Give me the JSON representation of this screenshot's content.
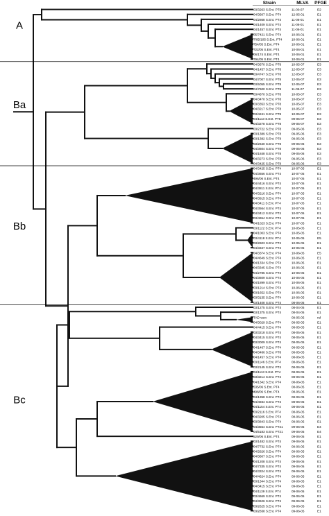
{
  "header": {
    "strain": "Strain",
    "mlva": "MLVA",
    "pfge": "PFGE"
  },
  "clusters": [
    "A",
    "Ba",
    "Bb",
    "Bc"
  ],
  "rows": [
    {
      "strain": "03/3263 S.Ent. PT8",
      "mlva": "11-00-07",
      "pfge": "E2"
    },
    {
      "strain": "04/3607 S.Ent. PT4",
      "mlva": "12-05-01",
      "pfge": "E1"
    },
    {
      "strain": "04/2868 S.Ent. PT4",
      "mlva": "11-06-01",
      "pfge": "E1"
    },
    {
      "strain": "04/1409 S.Ent. PT4",
      "mlva": "11-06-01",
      "pfge": "E1"
    },
    {
      "strain": "04/1457 S.Ent. PT4",
      "mlva": "11-06-01",
      "pfge": "E1"
    },
    {
      "strain": "05/7421 S.Ent. PT4",
      "mlva": "10-06-01",
      "pfge": "E1"
    },
    {
      "strain": "7/05/105 S.Ent. PT4",
      "mlva": "10-06-01",
      "pfge": "E1"
    },
    {
      "strain": "754/05 S.Ent. PT4",
      "mlva": "10-06-01",
      "pfge": "E1"
    },
    {
      "strain": "722/05 S.Ent. PT4",
      "mlva": "10-06-01",
      "pfge": "E1"
    },
    {
      "strain": "06/174 S.Ent. PT4",
      "mlva": "10-06-01",
      "pfge": "E1"
    },
    {
      "strain": "794/05 S.Ent. PT4",
      "mlva": "10-06-01",
      "pfge": "E1"
    },
    {
      "strain": "04/3670 S.Ent. PT8",
      "mlva": "10-05-07",
      "pfge": "E3"
    },
    {
      "strain": "04/1457 S.Ent. PT8",
      "mlva": "12-05-07",
      "pfge": "E3"
    },
    {
      "strain": "03/4747 S.Ent. PT8",
      "mlva": "12-05-07",
      "pfge": "E3"
    },
    {
      "strain": "04/7007 S.Ent. PT8",
      "mlva": "12-05-07",
      "pfge": "E3"
    },
    {
      "strain": "03/5055 S.Ent. PT8",
      "mlva": "12-05-07",
      "pfge": "E3"
    },
    {
      "strain": "04/7600 S.Ent. PT8",
      "mlva": "11-05-07",
      "pfge": "E3"
    },
    {
      "strain": "03/4670 S.Ent. PT8",
      "mlva": "10-05-07",
      "pfge": "E3"
    },
    {
      "strain": "04/3470 S.Ent. PT8",
      "mlva": "10-05-07",
      "pfge": "E3"
    },
    {
      "strain": "03/3353 S.Ent. PT8",
      "mlva": "10-05-07",
      "pfge": "E3"
    },
    {
      "strain": "04/3217 S.Ent. PT8",
      "mlva": "10-05-07",
      "pfge": "E3"
    },
    {
      "strain": "03/4241 S.Ent. PT8",
      "mlva": "10-05-07",
      "pfge": "E3"
    },
    {
      "strain": "04/1113 S.Ent. PT8",
      "mlva": "09-05-07",
      "pfge": "E3"
    },
    {
      "strain": "04/3278 S.Ent. PT8",
      "mlva": "09-05-07",
      "pfge": "E3"
    },
    {
      "strain": "03/2722 S.Ent. PT8",
      "mlva": "09-05-06",
      "pfge": "E3"
    },
    {
      "strain": "03/1389 S.Ent. PT8",
      "mlva": "09-05-06",
      "pfge": "E3"
    },
    {
      "strain": "03/1382 S.Ent. PT8",
      "mlva": "09-05-06",
      "pfge": "E3"
    },
    {
      "strain": "03/2640 S.Ent. PT8",
      "mlva": "09-05-06",
      "pfge": "E3"
    },
    {
      "strain": "04/3604 S.Ent. PT8",
      "mlva": "09-05-06",
      "pfge": "E3"
    },
    {
      "strain": "04/1848 S.Ent. PT8",
      "mlva": "09-05-06",
      "pfge": "E3"
    },
    {
      "strain": "04/3273 S.Ent. PT8",
      "mlva": "09-05-06",
      "pfge": "E3"
    },
    {
      "strain": "04/3425 S.Ent. PT8",
      "mlva": "09-05-06",
      "pfge": "E3"
    },
    {
      "strain": "04/3425 S.Ent. PT4",
      "mlva": "10-07-05",
      "pfge": "E1"
    },
    {
      "strain": "04/3656 S.Ent. PT4",
      "mlva": "10-07-05",
      "pfge": "E1"
    },
    {
      "strain": "496/06 S.Ent. PT4",
      "mlva": "10-07-05",
      "pfge": "E1"
    },
    {
      "strain": "04/4416 S.Ent. PT4",
      "mlva": "10-07-05",
      "pfge": "E1"
    },
    {
      "strain": "04/3811 S.Ent. PT4",
      "mlva": "10-07-05",
      "pfge": "E1"
    },
    {
      "strain": "04/3216 S.Ent. PT4",
      "mlva": "10-07-05",
      "pfge": "E1"
    },
    {
      "strain": "04/3915 S.Ent. PT4",
      "mlva": "10-07-05",
      "pfge": "E1"
    },
    {
      "strain": "04/3411 S.Ent. PT4",
      "mlva": "10-07-05",
      "pfge": "E1"
    },
    {
      "strain": "04/3564 S.Ent. PT4",
      "mlva": "10-07-05",
      "pfge": "E1"
    },
    {
      "strain": "04/3412 S.Ent. PT4",
      "mlva": "10-07-05",
      "pfge": "E1"
    },
    {
      "strain": "03/4654 S.Ent. PT4",
      "mlva": "10-07-05",
      "pfge": "E1"
    },
    {
      "strain": "04/1023 S.Ent. PT4",
      "mlva": "10-07-05",
      "pfge": "E1"
    },
    {
      "strain": "03/1122 S.Ent. PT4",
      "mlva": "10-05-05",
      "pfge": "E1"
    },
    {
      "strain": "04/1003 S.Ent. PT4",
      "mlva": "10-05-05",
      "pfge": "E1"
    },
    {
      "strain": "03/4118 S.Ent. PT4",
      "mlva": "10-05-05",
      "pfge": "E5"
    },
    {
      "strain": "03/2603 S.Ent. PT4",
      "mlva": "10-05-05",
      "pfge": "E1"
    },
    {
      "strain": "04/3347 S.Ent. PT4",
      "mlva": "10-05-05",
      "pfge": "E1"
    },
    {
      "strain": "04/3374 S.Ent. PT4",
      "mlva": "10-06-05",
      "pfge": "E5"
    },
    {
      "strain": "04/4649 S.Ent. PT4",
      "mlva": "10-06-05",
      "pfge": "E1"
    },
    {
      "strain": "04/1334 S.Ent. PT4",
      "mlva": "10-06-05",
      "pfge": "E1"
    },
    {
      "strain": "04/3345 S.Ent. PT4",
      "mlva": "10-06-05",
      "pfge": "E1"
    },
    {
      "strain": "04/2785 S.Ent. PT4",
      "mlva": "10-06-05",
      "pfge": "E1"
    },
    {
      "strain": "04/3609 S.Ent. PT4",
      "mlva": "10-06-05",
      "pfge": "E1"
    },
    {
      "strain": "04/1899 S.Ent. PT4",
      "mlva": "10-06-05",
      "pfge": "E1"
    },
    {
      "strain": "03/1214 S.Ent. PT4",
      "mlva": "10-06-05",
      "pfge": "E1"
    },
    {
      "strain": "03/1652 S.Ent. PT4",
      "mlva": "10-06-05",
      "pfge": "E1"
    },
    {
      "strain": "03/3135 S.Ent. PT4",
      "mlva": "10-06-05",
      "pfge": "E1"
    },
    {
      "strain": "03/1408 S.Ent. PT4",
      "mlva": "08-06-05",
      "pfge": "E1"
    },
    {
      "strain": "03/1275 S.Ent. PT4",
      "mlva": "08-04-05",
      "pfge": "E1"
    },
    {
      "strain": "03/1375 S.Ent. PT4",
      "mlva": "08-04-05",
      "pfge": "E1"
    },
    {
      "strain": "TAD vacc",
      "mlva": "09-05-05",
      "pfge": "nd"
    },
    {
      "strain": "04/3029 S.Ent. PT4",
      "mlva": "08-05-05",
      "pfge": "E1"
    },
    {
      "strain": "04/4415 S.Ent. PT4",
      "mlva": "08-05-05",
      "pfge": "E1"
    },
    {
      "strain": "03/3218 S.Ent. PT4",
      "mlva": "08-05-05",
      "pfge": "E1"
    },
    {
      "strain": "04/3415 S.Ent. PT4",
      "mlva": "08-05-05",
      "pfge": "E1"
    },
    {
      "strain": "03/3009 S.Ent. PT4",
      "mlva": "08-05-05",
      "pfge": "E1"
    },
    {
      "strain": "04/1467 S.Ent. PT4",
      "mlva": "08-05-05",
      "pfge": "E1"
    },
    {
      "strain": "04/3486 S.Ent. PT8",
      "mlva": "08-05-05",
      "pfge": "E1"
    },
    {
      "strain": "04/1457 S.Ent. PT4",
      "mlva": "08-06-05",
      "pfge": "E1"
    },
    {
      "strain": "03/1146 S.Ent. PT4",
      "mlva": "08-06-05",
      "pfge": "E1"
    },
    {
      "strain": "03/2145 S.Ent. PT4",
      "mlva": "08-06-05",
      "pfge": "E1"
    },
    {
      "strain": "04/1113 S.Ent. PT4",
      "mlva": "08-06-05",
      "pfge": "E1"
    },
    {
      "strain": "03/3214 S.Ent. PT4",
      "mlva": "08-06-05",
      "pfge": "E1"
    },
    {
      "strain": "04/1342 S.Ent. PT4",
      "mlva": "08-06-05",
      "pfge": "E1"
    },
    {
      "strain": "535/06 S.Ent. PT4",
      "mlva": "08-06-05",
      "pfge": "E1"
    },
    {
      "strain": "498/06 S.Ent. PT4",
      "mlva": "08-06-05",
      "pfge": "E1"
    },
    {
      "strain": "04/1358 S.Ent. PT4",
      "mlva": "08-06-05",
      "pfge": "E1"
    },
    {
      "strain": "04/4934 S.Ent. PT4",
      "mlva": "08-06-05",
      "pfge": "E1"
    },
    {
      "strain": "04/1154 S.Ent. PT4",
      "mlva": "08-06-05",
      "pfge": "E1"
    },
    {
      "strain": "03/2116 S.Ent. PT4",
      "mlva": "08-06-05",
      "pfge": "E1"
    },
    {
      "strain": "04/3205 S.Ent. PT4",
      "mlva": "08-06-05",
      "pfge": "E1"
    },
    {
      "strain": "03/3843 S.Ent. PT4",
      "mlva": "09-06-05",
      "pfge": "E1"
    },
    {
      "strain": "04/3554 S.Ent. PT21",
      "mlva": "09-06-05",
      "pfge": "E4"
    },
    {
      "strain": "04/5183 S.Ent. PT21",
      "mlva": "09-06-05",
      "pfge": "E4"
    },
    {
      "strain": "529/06 S.Ent. PT4",
      "mlva": "09-06-05",
      "pfge": "E1"
    },
    {
      "strain": "03/1482 S.Ent. PT4",
      "mlva": "09-06-05",
      "pfge": "E1"
    },
    {
      "strain": "04/7732 S.Ent. PT4",
      "mlva": "09-06-05",
      "pfge": "E1"
    },
    {
      "strain": "04/2826 S.Ent. PT4",
      "mlva": "09-06-05",
      "pfge": "E1"
    },
    {
      "strain": "04/3607 S.Ent. PT4",
      "mlva": "09-06-05",
      "pfge": "E1"
    },
    {
      "strain": "04/1208 S.Ent. PT4",
      "mlva": "09-06-05",
      "pfge": "E1"
    },
    {
      "strain": "04/7335 S.Ent. PT4",
      "mlva": "09-06-05",
      "pfge": "E1"
    },
    {
      "strain": "04/3324 S.Ent. PT4",
      "mlva": "09-06-05",
      "pfge": "E1"
    },
    {
      "strain": "04/4624 S.Ent. PT4",
      "mlva": "09-06-05",
      "pfge": "E1"
    },
    {
      "strain": "03/1344 S.Ent. PT4",
      "mlva": "09-06-05",
      "pfge": "E1"
    },
    {
      "strain": "04/3415 S.Ent. PT4",
      "mlva": "09-06-05",
      "pfge": "E1"
    },
    {
      "strain": "04/1139 S.Ent. PT4",
      "mlva": "09-06-05",
      "pfge": "E1"
    },
    {
      "strain": "03/4669 S.Ent. PT4",
      "mlva": "09-06-05",
      "pfge": "E1"
    },
    {
      "strain": "04/3626 S.Ent. PT4",
      "mlva": "09-06-05",
      "pfge": "E1"
    },
    {
      "strain": "03/2625 S.Ent. PT4",
      "mlva": "09-06-05",
      "pfge": "E1"
    },
    {
      "strain": "03/2838 S.Ent. PT4",
      "mlva": "09-06-05",
      "pfge": "E1"
    }
  ]
}
